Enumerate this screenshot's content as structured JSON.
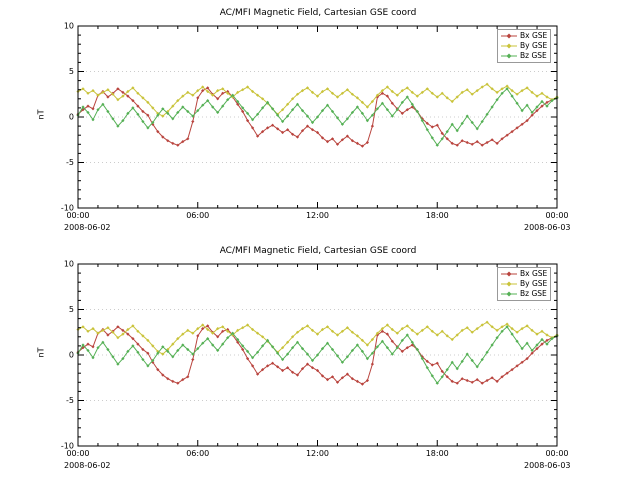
{
  "chart_data": {
    "type": "line",
    "panels": 2,
    "title": "AC/MFI Magnetic Field, Cartesian GSE coord",
    "ylabel": "nT",
    "ylim": [
      -10,
      10
    ],
    "yticks": [
      -10,
      -5,
      0,
      5,
      10
    ],
    "grid_levels": [
      -5,
      0,
      5
    ],
    "xtick_hours": [
      0,
      6,
      12,
      18,
      24
    ],
    "xtick_labels": [
      "00:00",
      "06:00",
      "12:00",
      "18:00",
      "00:00"
    ],
    "x_start_date": "2008-06-02",
    "x_end_date": "2008-06-03",
    "x_step_hours": 0.25,
    "legend_position": "top-right",
    "series": [
      {
        "name": "Bx GSE",
        "color": "#b9443e",
        "values": [
          0.3,
          0.8,
          1.2,
          0.9,
          2.4,
          2.8,
          2.2,
          2.6,
          3.1,
          2.7,
          2.3,
          1.8,
          1.2,
          0.6,
          0.2,
          -0.8,
          -1.6,
          -2.2,
          -2.6,
          -2.9,
          -3.1,
          -2.7,
          -2.4,
          -0.5,
          2.1,
          2.9,
          3.2,
          2.5,
          2.0,
          2.6,
          2.8,
          2.2,
          1.4,
          0.6,
          -0.4,
          -1.2,
          -2.1,
          -1.6,
          -1.2,
          -0.9,
          -1.3,
          -1.7,
          -1.4,
          -1.9,
          -2.2,
          -1.5,
          -1.0,
          -1.4,
          -1.7,
          -2.3,
          -2.7,
          -2.4,
          -3.0,
          -2.5,
          -2.1,
          -2.6,
          -2.9,
          -3.2,
          -2.8,
          -1.0,
          2.2,
          2.6,
          2.3,
          1.5,
          0.9,
          0.4,
          0.8,
          1.1,
          0.6,
          -0.2,
          -0.7,
          -1.1,
          -0.9,
          -1.8,
          -2.4,
          -2.9,
          -3.1,
          -2.6,
          -2.8,
          -3.0,
          -2.7,
          -3.1,
          -2.8,
          -2.5,
          -2.9,
          -2.4,
          -2.0,
          -1.6,
          -1.2,
          -0.8,
          -0.4,
          0.2,
          0.7,
          1.2,
          1.6,
          1.9,
          2.1
        ]
      },
      {
        "name": "By GSE",
        "color": "#c9c33a",
        "values": [
          2.8,
          3.1,
          2.6,
          2.9,
          2.4,
          2.7,
          3.0,
          2.5,
          1.9,
          2.3,
          2.8,
          3.2,
          2.6,
          2.1,
          1.6,
          1.0,
          0.4,
          0.1,
          0.6,
          1.2,
          1.8,
          2.3,
          2.7,
          2.4,
          2.9,
          3.3,
          2.8,
          2.4,
          2.9,
          3.1,
          2.6,
          2.2,
          2.7,
          3.0,
          3.3,
          2.8,
          2.4,
          2.0,
          1.5,
          0.9,
          0.3,
          0.8,
          1.4,
          2.0,
          2.5,
          2.9,
          3.2,
          2.7,
          2.3,
          2.8,
          3.1,
          2.6,
          2.2,
          2.6,
          3.0,
          2.5,
          2.1,
          1.6,
          1.1,
          1.7,
          2.4,
          2.9,
          3.3,
          2.8,
          2.4,
          2.9,
          3.2,
          2.7,
          2.3,
          2.7,
          3.1,
          2.6,
          2.2,
          2.6,
          2.1,
          1.7,
          2.2,
          2.7,
          3.0,
          2.5,
          2.9,
          3.3,
          3.6,
          3.1,
          2.7,
          3.1,
          3.4,
          2.9,
          2.5,
          2.9,
          3.2,
          2.7,
          2.3,
          2.6,
          2.2,
          1.9,
          2.2
        ]
      },
      {
        "name": "Bz GSE",
        "color": "#55b055",
        "values": [
          0.2,
          1.1,
          0.5,
          -0.3,
          0.8,
          1.4,
          0.6,
          -0.2,
          -1.0,
          -0.4,
          0.4,
          1.0,
          0.3,
          -0.5,
          -1.2,
          -0.6,
          0.2,
          0.9,
          0.4,
          -0.2,
          0.5,
          1.1,
          0.6,
          0.1,
          0.7,
          1.3,
          1.8,
          1.1,
          0.5,
          1.2,
          1.9,
          2.4,
          1.7,
          1.0,
          0.4,
          -0.3,
          0.3,
          1.0,
          1.6,
          0.9,
          0.2,
          -0.5,
          0.1,
          0.8,
          1.4,
          0.7,
          0.1,
          -0.6,
          0.0,
          0.7,
          1.3,
          0.6,
          -0.1,
          -0.8,
          -0.2,
          0.5,
          1.1,
          0.4,
          -0.4,
          0.2,
          0.9,
          1.5,
          0.8,
          0.1,
          0.8,
          1.6,
          2.2,
          1.4,
          0.6,
          -0.4,
          -1.4,
          -2.3,
          -3.1,
          -2.4,
          -1.6,
          -0.8,
          -1.5,
          -0.7,
          0.1,
          -0.6,
          -1.3,
          -0.5,
          0.3,
          1.1,
          1.9,
          2.6,
          3.1,
          2.3,
          1.5,
          0.7,
          1.3,
          0.5,
          1.1,
          1.7,
          1.2,
          1.8,
          2.1
        ]
      }
    ]
  }
}
